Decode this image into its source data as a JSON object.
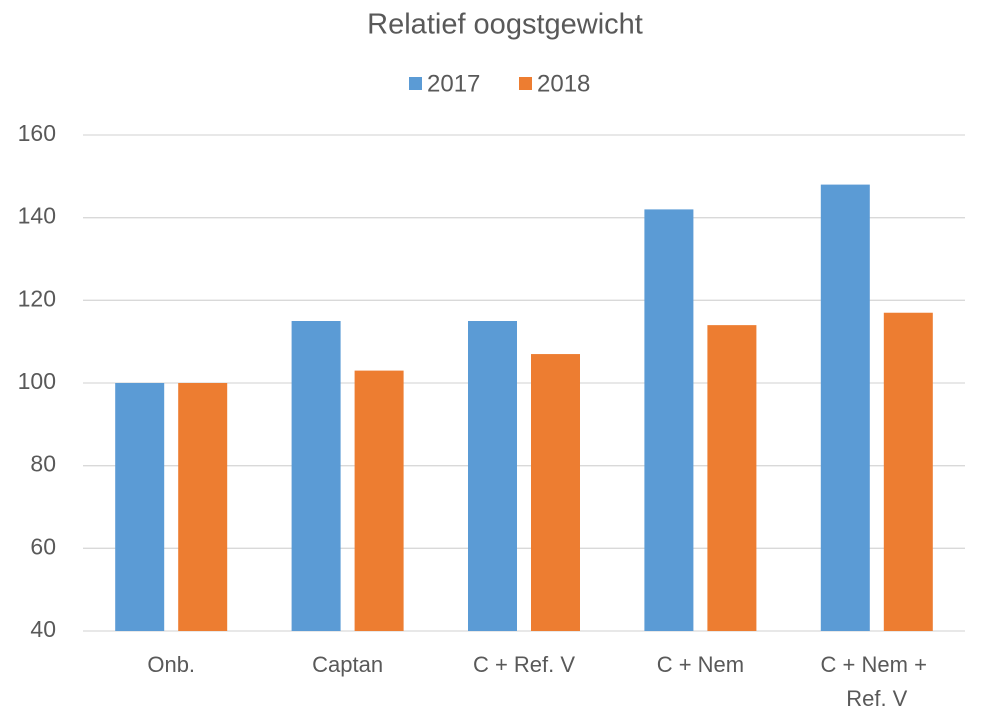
{
  "chart_data": {
    "type": "bar",
    "title": "Relatief oogstgewicht",
    "categories": [
      "Onb.",
      "Captan",
      "C + Ref. V",
      "C + Nem",
      "C + Nem + Ref. V"
    ],
    "series": [
      {
        "name": "2017",
        "color": "#5b9bd5",
        "values": [
          100,
          115,
          115,
          142,
          148
        ]
      },
      {
        "name": "2018",
        "color": "#ed7d31",
        "values": [
          100,
          103,
          107,
          114,
          117
        ]
      }
    ],
    "ylim": [
      40,
      160
    ],
    "yticks": [
      40,
      60,
      80,
      100,
      120,
      140,
      160
    ],
    "grid": true,
    "legend": "top"
  }
}
